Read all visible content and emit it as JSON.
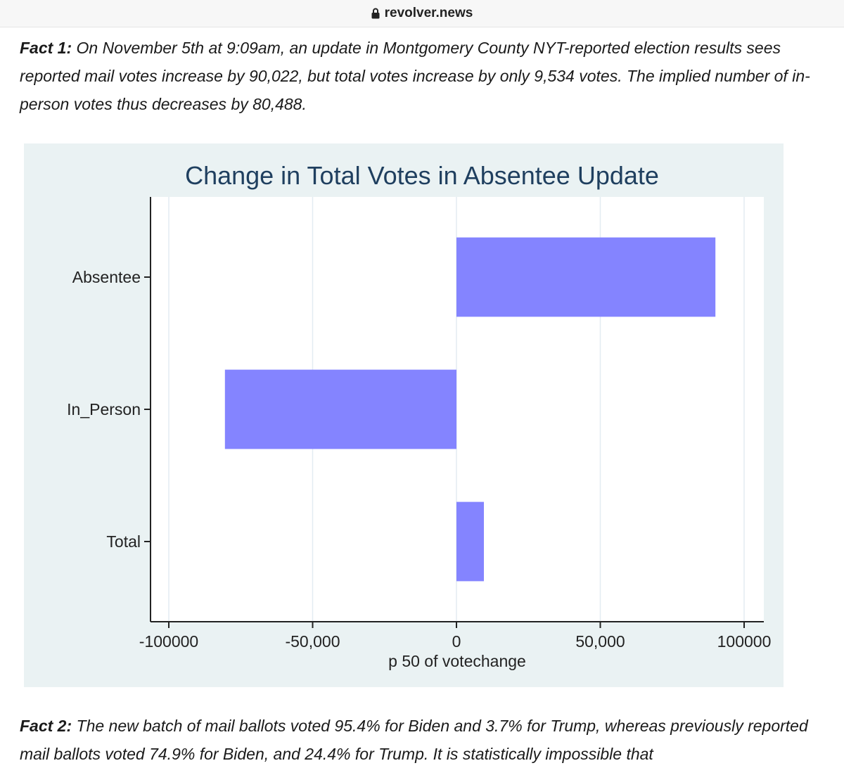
{
  "browser": {
    "url": "revolver.news",
    "lock_icon": "lock-icon"
  },
  "article": {
    "fact1": {
      "label": "Fact 1:",
      "text": "On November 5th at 9:09am, an update in Montgomery County NYT-reported election results sees reported mail votes increase by 90,022, but total votes increase by only 9,534 votes. The implied number of in-person votes thus decreases by 80,488."
    },
    "fact2": {
      "label": "Fact 2:",
      "text": "The new batch of mail ballots voted 95.4% for Biden and 3.7% for Trump, whereas previously reported mail ballots voted 74.9% for Biden, and 24.4% for Trump. It is statistically impossible that"
    }
  },
  "chart_data": {
    "type": "bar",
    "orientation": "horizontal",
    "title": "Change in Total Votes in Absentee Update",
    "xlabel": "p 50 of votechange",
    "ylabel": "",
    "categories": [
      "Absentee",
      "In_Person",
      "Total"
    ],
    "values": [
      90022,
      -80488,
      9534
    ],
    "xlim": [
      -100000,
      100000
    ],
    "xticks": [
      -100000,
      -50000,
      0,
      50000,
      100000
    ],
    "xtick_labels": [
      "-100000",
      "-50,000",
      "0",
      "50,000",
      "100000"
    ],
    "grid": true,
    "legend": "none",
    "bar_color": "#8484ff",
    "background_color": "#eaf2f3",
    "plot_color": "#ffffff",
    "title_color": "#1f3f5f"
  }
}
